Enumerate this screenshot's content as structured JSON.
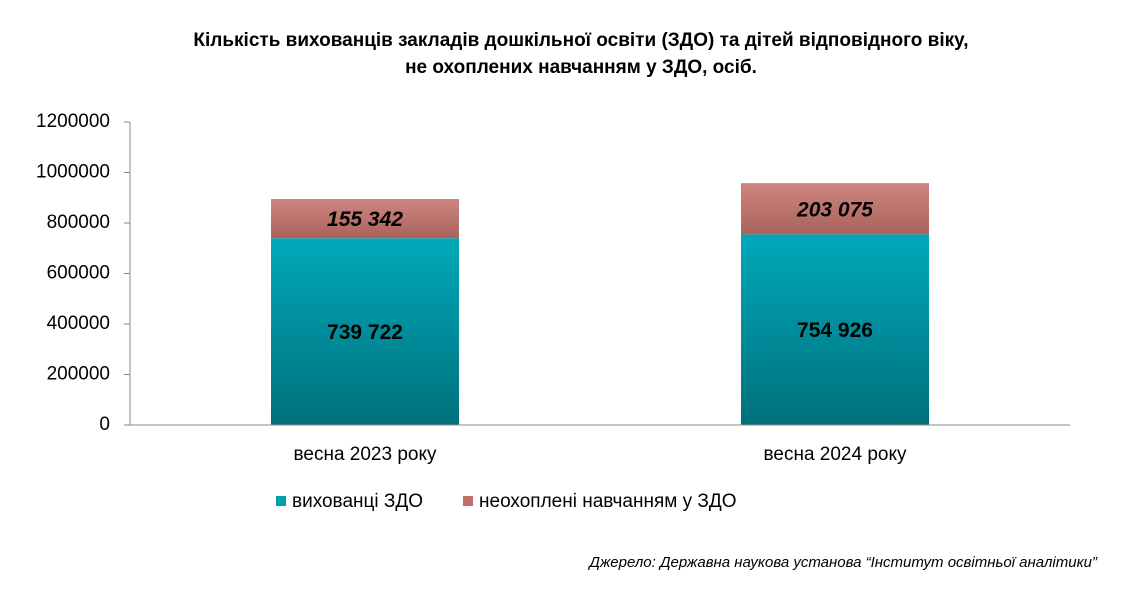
{
  "chart_data": {
    "type": "stacked_bar",
    "title": [
      "Кількість вихованців закладів дошкільної освіти (ЗДО) та дітей відповідного віку,",
      "не охоплених навчанням у ЗДО, осіб."
    ],
    "categories": [
      "весна 2023 року",
      "весна 2024 року"
    ],
    "series": [
      {
        "name": "вихованці ЗДО",
        "color": "#009fae",
        "values": [
          739722,
          754926
        ],
        "value_labels": [
          "739 722",
          "754 926"
        ]
      },
      {
        "name": "неохоплені навчанням у ЗДО",
        "color": "#c0706a",
        "values": [
          155342,
          203075
        ],
        "value_labels": [
          "155 342",
          "203 075"
        ]
      }
    ],
    "ylim": [
      0,
      1200000
    ],
    "yticks": [
      0,
      200000,
      400000,
      600000,
      800000,
      1000000,
      1200000
    ],
    "legend": "bottom",
    "annotations": [
      "Джерело: Державна наукова установа “Інститут освітньої аналітики”"
    ]
  }
}
